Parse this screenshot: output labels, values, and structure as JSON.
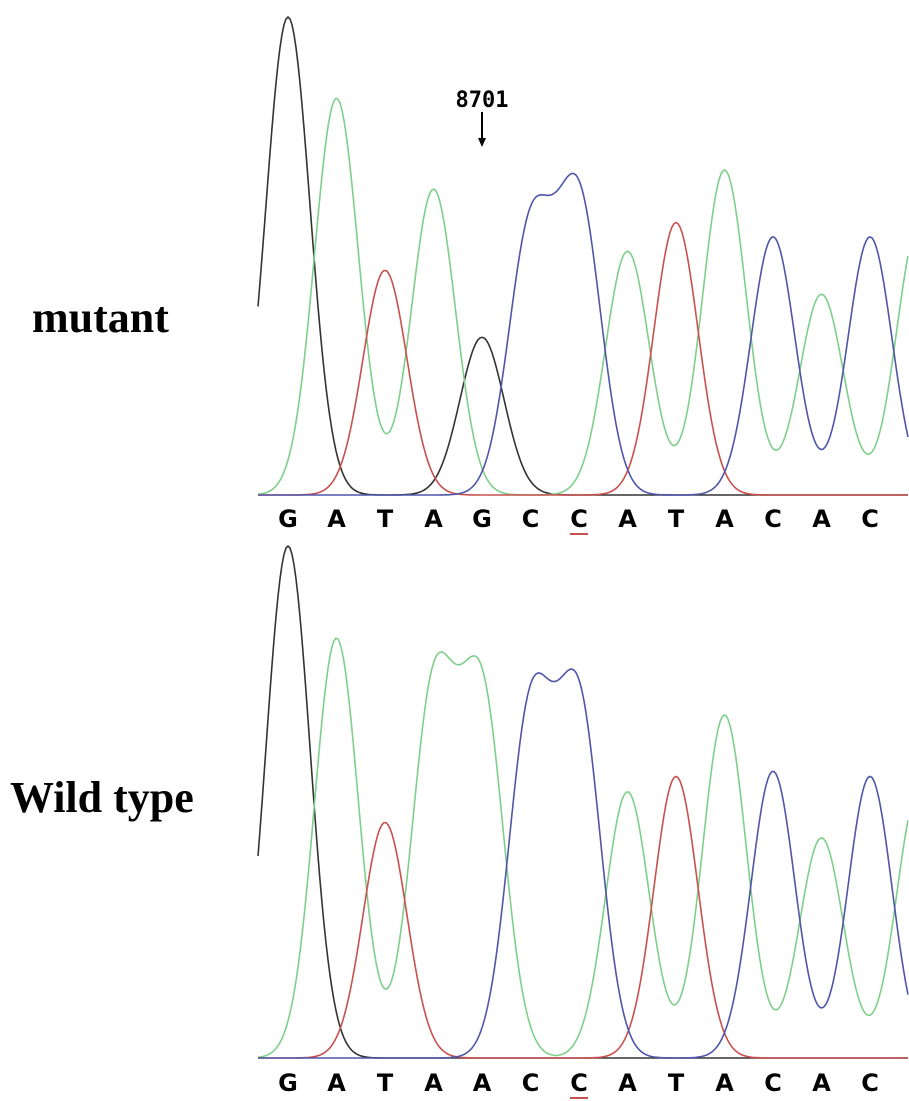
{
  "chart_data": [
    {
      "type": "line",
      "panel": "mutant",
      "title": "mutant",
      "x": [
        1,
        2,
        3,
        4,
        5,
        6,
        7,
        8,
        9,
        10,
        11,
        12,
        13
      ],
      "bases": [
        "G",
        "A",
        "T",
        "A",
        "G",
        "C",
        "C",
        "A",
        "T",
        "A",
        "C",
        "A",
        "C"
      ],
      "underlined_index": 6,
      "annotation": {
        "text": "8701",
        "base_index": 4
      },
      "series": [
        {
          "channel": "G",
          "color": "#333333",
          "peaks": [
            {
              "x": 1,
              "h": 100
            },
            {
              "x": 5,
              "h": 33
            }
          ]
        },
        {
          "channel": "A",
          "color": "#7fcf8b",
          "peaks": [
            {
              "x": 2,
              "h": 83
            },
            {
              "x": 4,
              "h": 64
            },
            {
              "x": 8,
              "h": 51
            },
            {
              "x": 10,
              "h": 68
            },
            {
              "x": 12,
              "h": 42
            },
            {
              "x": 14,
              "h": 56
            }
          ]
        },
        {
          "channel": "T",
          "color": "#c8504f",
          "peaks": [
            {
              "x": 3,
              "h": 47
            },
            {
              "x": 9,
              "h": 57
            }
          ]
        },
        {
          "channel": "C",
          "color": "#4f56a8",
          "peaks": [
            {
              "x": 6,
              "h": 55
            },
            {
              "x": 7,
              "h": 61
            },
            {
              "x": 11,
              "h": 54
            },
            {
              "x": 13,
              "h": 54
            }
          ]
        }
      ],
      "ylim": [
        0,
        100
      ]
    },
    {
      "type": "line",
      "panel": "wild-type",
      "title": "Wild type",
      "x": [
        1,
        2,
        3,
        4,
        5,
        6,
        7,
        8,
        9,
        10,
        11,
        12,
        13
      ],
      "bases": [
        "G",
        "A",
        "T",
        "A",
        "A",
        "C",
        "C",
        "A",
        "T",
        "A",
        "C",
        "A",
        "C"
      ],
      "underlined_index": 6,
      "series": [
        {
          "channel": "G",
          "color": "#333333",
          "peaks": [
            {
              "x": 1,
              "h": 100
            }
          ]
        },
        {
          "channel": "A",
          "color": "#7fcf8b",
          "peaks": [
            {
              "x": 2,
              "h": 82
            },
            {
              "x": 4,
              "h": 71
            },
            {
              "x": 5,
              "h": 70
            },
            {
              "x": 8,
              "h": 52
            },
            {
              "x": 10,
              "h": 67
            },
            {
              "x": 12,
              "h": 43
            },
            {
              "x": 14,
              "h": 52
            }
          ]
        },
        {
          "channel": "T",
          "color": "#c8504f",
          "peaks": [
            {
              "x": 3,
              "h": 46
            },
            {
              "x": 9,
              "h": 55
            }
          ]
        },
        {
          "channel": "C",
          "color": "#4f56a8",
          "peaks": [
            {
              "x": 6,
              "h": 67
            },
            {
              "x": 7,
              "h": 68
            },
            {
              "x": 11,
              "h": 56
            },
            {
              "x": 13,
              "h": 55
            }
          ]
        }
      ],
      "ylim": [
        0,
        100
      ]
    }
  ]
}
